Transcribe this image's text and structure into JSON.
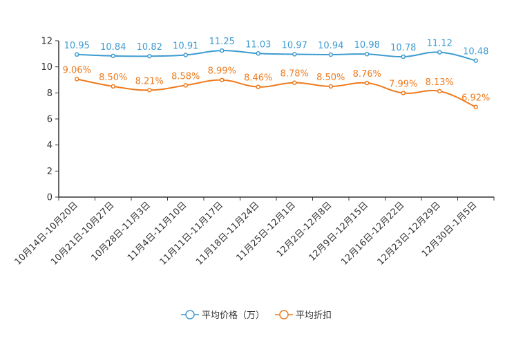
{
  "chart_data": {
    "type": "line",
    "title": "",
    "xlabel": "",
    "ylabel": "",
    "ylim": [
      0,
      12
    ],
    "yticks": [
      0,
      2,
      4,
      6,
      8,
      10,
      12
    ],
    "categories": [
      "10月14日-10月20日",
      "10月21日-10月27日",
      "10月28日-11月3日",
      "11月4日-11月10日",
      "11月11日-11月17日",
      "11月18日-11月24日",
      "11月25日-12月1日",
      "12月2日-12月8日",
      "12月9日-12月15日",
      "12月16日-12月22日",
      "12月23日-12月29日",
      "12月30日-1月5日"
    ],
    "series": [
      {
        "name": "平均价格（万）",
        "color": "#3d9bd0",
        "values": [
          10.95,
          10.84,
          10.82,
          10.91,
          11.25,
          11.03,
          10.97,
          10.94,
          10.98,
          10.78,
          11.12,
          10.48
        ],
        "labels": [
          "10.95",
          "10.84",
          "10.82",
          "10.91",
          "11.25",
          "11.03",
          "10.97",
          "10.94",
          "10.98",
          "10.78",
          "11.12",
          "10.48"
        ]
      },
      {
        "name": "平均折扣",
        "color": "#ee7a1d",
        "values": [
          9.06,
          8.5,
          8.21,
          8.58,
          8.99,
          8.46,
          8.78,
          8.5,
          8.76,
          7.99,
          8.13,
          6.92
        ],
        "labels": [
          "9.06%",
          "8.50%",
          "8.21%",
          "8.58%",
          "8.99%",
          "8.46%",
          "8.78%",
          "8.50%",
          "8.76%",
          "7.99%",
          "8.13%",
          "6.92%"
        ]
      }
    ],
    "legend_position": "bottom-center"
  }
}
